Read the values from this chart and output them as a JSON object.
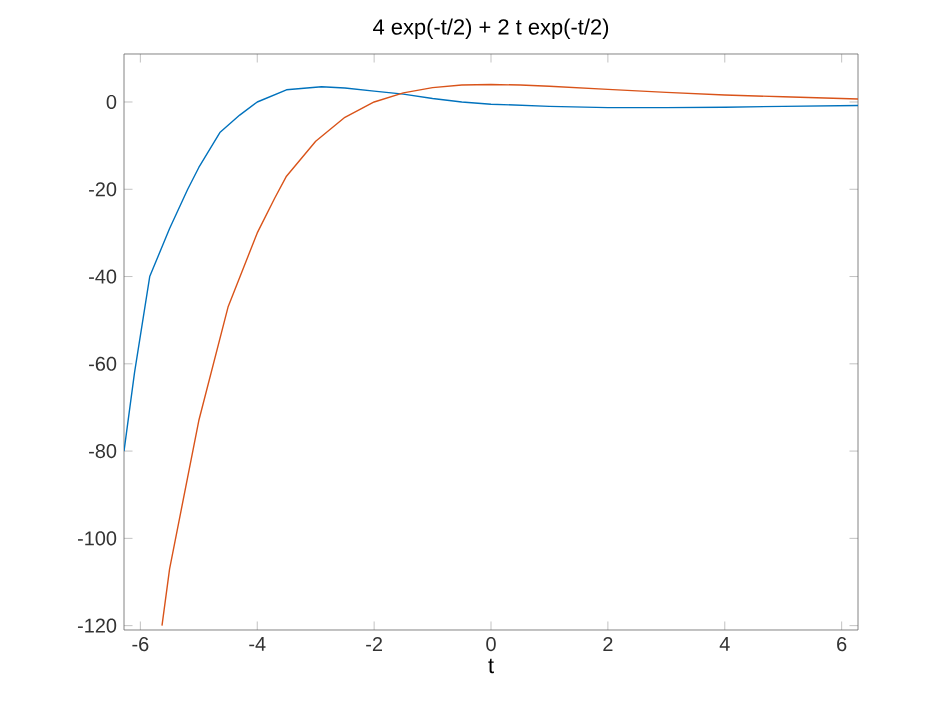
{
  "chart_data": {
    "type": "line",
    "title": "4 exp(-t/2) + 2 t exp(-t/2)",
    "xlabel": "t",
    "xlim": [
      -6.28,
      6.28
    ],
    "ylim": [
      -121,
      11
    ],
    "xticks": [
      -6,
      -4,
      -2,
      0,
      2,
      4,
      6
    ],
    "yticks": [
      -120,
      -100,
      -80,
      -60,
      -40,
      -20,
      0
    ],
    "marker": "none",
    "line_style": "solid",
    "series": [
      {
        "color": "#0072bd",
        "x": [
          -6.28,
          -6.1,
          -5.84,
          -5.5,
          -5.19,
          -5.0,
          -4.64,
          -4.3,
          -4.0,
          -3.5,
          -2.9,
          -2.5,
          -2.0,
          -1.5,
          -1.0,
          -0.5,
          0,
          1,
          2,
          3,
          4,
          5,
          6.28
        ],
        "values": [
          -80,
          -62,
          -40,
          -29,
          -20,
          -15,
          -7,
          -3,
          0,
          2.8,
          3.5,
          3.2,
          2.5,
          1.8,
          0.8,
          0,
          -0.5,
          -1.0,
          -1.3,
          -1.3,
          -1.2,
          -1.0,
          -0.8
        ]
      },
      {
        "color": "#d95319",
        "x": [
          -5.63,
          -5.5,
          -5.0,
          -4.5,
          -4.0,
          -3.7,
          -3.5,
          -3.0,
          -2.5,
          -2.0,
          -1.5,
          -1.0,
          -0.5,
          0,
          0.5,
          1,
          2,
          3,
          4,
          5,
          6.28
        ],
        "values": [
          -120,
          -107,
          -73,
          -47,
          -30,
          -22,
          -17,
          -9,
          -3.5,
          0,
          2.1,
          3.3,
          3.9,
          4,
          3.9,
          3.6,
          2.9,
          2.2,
          1.6,
          1.2,
          0.7
        ]
      }
    ]
  }
}
